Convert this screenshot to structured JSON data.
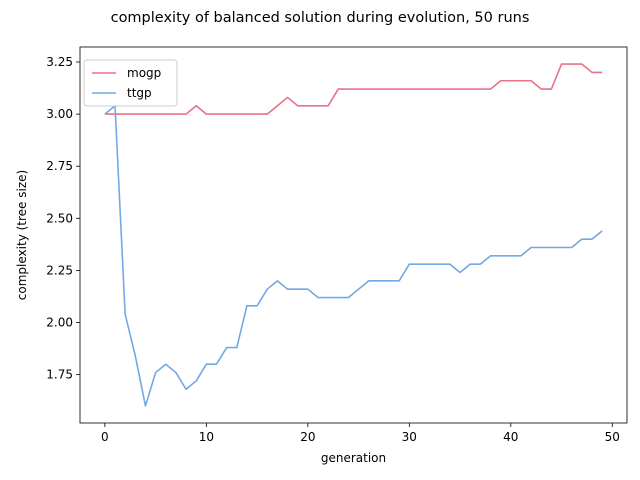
{
  "chart_data": {
    "type": "line",
    "title": "complexity of balanced solution during evolution, 50 runs",
    "xlabel": "generation",
    "ylabel": "complexity (tree size)",
    "xlim": [
      -2.45,
      51.45
    ],
    "ylim": [
      1.518,
      3.322
    ],
    "xticks": [
      0,
      10,
      20,
      30,
      40,
      50
    ],
    "yticks": [
      1.75,
      2.0,
      2.25,
      2.5,
      2.75,
      3.0,
      3.25
    ],
    "ytick_labels": [
      "1.75",
      "2.00",
      "2.25",
      "2.50",
      "2.75",
      "3.00",
      "3.25"
    ],
    "legend": "upper left",
    "grid": false,
    "x": [
      0,
      1,
      2,
      3,
      4,
      5,
      6,
      7,
      8,
      9,
      10,
      11,
      12,
      13,
      14,
      15,
      16,
      17,
      18,
      19,
      20,
      21,
      22,
      23,
      24,
      25,
      26,
      27,
      28,
      29,
      30,
      31,
      32,
      33,
      34,
      35,
      36,
      37,
      38,
      39,
      40,
      41,
      42,
      43,
      44,
      45,
      46,
      47,
      48,
      49
    ],
    "series": [
      {
        "name": "mogp",
        "color": "#e8728a",
        "values": [
          3.0,
          3.0,
          3.0,
          3.0,
          3.0,
          3.0,
          3.0,
          3.0,
          3.0,
          3.04,
          3.0,
          3.0,
          3.0,
          3.0,
          3.0,
          3.0,
          3.0,
          3.04,
          3.08,
          3.04,
          3.04,
          3.04,
          3.04,
          3.12,
          3.12,
          3.12,
          3.12,
          3.12,
          3.12,
          3.12,
          3.12,
          3.12,
          3.12,
          3.12,
          3.12,
          3.12,
          3.12,
          3.12,
          3.12,
          3.16,
          3.16,
          3.16,
          3.16,
          3.12,
          3.12,
          3.24,
          3.24,
          3.24,
          3.2,
          3.2
        ]
      },
      {
        "name": "ttgp",
        "color": "#72a8e4",
        "values": [
          3.0,
          3.04,
          2.04,
          1.84,
          1.6,
          1.76,
          1.8,
          1.76,
          1.68,
          1.72,
          1.8,
          1.8,
          1.88,
          1.88,
          2.08,
          2.08,
          2.16,
          2.2,
          2.16,
          2.16,
          2.16,
          2.12,
          2.12,
          2.12,
          2.12,
          2.16,
          2.2,
          2.2,
          2.2,
          2.2,
          2.28,
          2.28,
          2.28,
          2.28,
          2.28,
          2.24,
          2.28,
          2.28,
          2.32,
          2.32,
          2.32,
          2.32,
          2.36,
          2.36,
          2.36,
          2.36,
          2.36,
          2.4,
          2.4,
          2.44
        ]
      }
    ]
  }
}
